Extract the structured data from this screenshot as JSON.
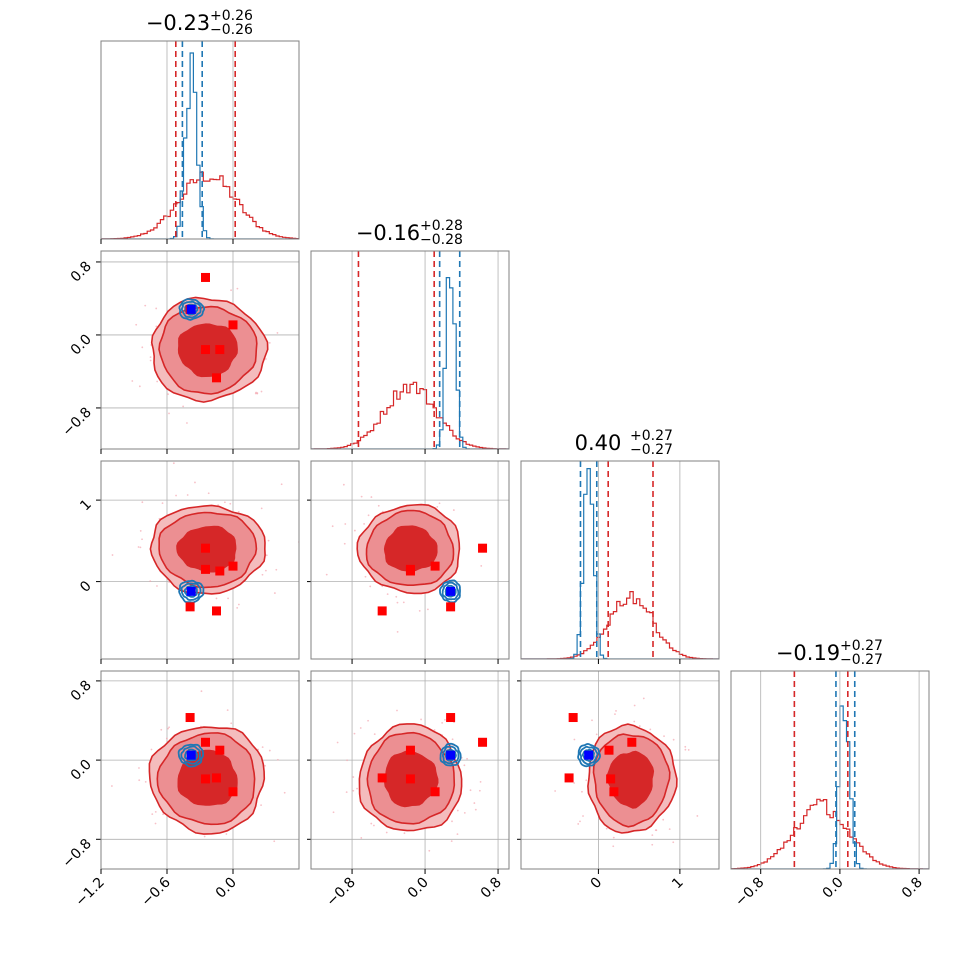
{
  "chart_data": {
    "type": "corner",
    "n_params": 4,
    "series": [
      {
        "name": "",
        "color": "#d62728",
        "style": "filled-contours",
        "centers": [
          -0.23,
          -0.16,
          0.4,
          -0.19
        ],
        "sigmas": [
          0.26,
          0.28,
          0.27,
          0.27
        ],
        "quantile_lines": [
          [
            -0.52,
            0.02
          ],
          [
            -0.73,
            0.1
          ],
          [
            0.12,
            0.67
          ],
          [
            -0.46,
            0.08
          ]
        ]
      },
      {
        "name": "",
        "color": "#1f77b4",
        "style": "line-contours",
        "centers": [
          -0.38,
          0.28,
          -0.12,
          0.05
        ],
        "sigmas": [
          0.05,
          0.05,
          0.06,
          0.05
        ],
        "quantile_lines": [
          [
            -0.46,
            -0.28
          ],
          [
            0.16,
            0.38
          ],
          [
            -0.22,
            -0.02
          ],
          [
            -0.04,
            0.15
          ]
        ]
      }
    ],
    "titles": [
      {
        "main": "−0.23",
        "sup": "+0.26",
        "sub": "−0.26"
      },
      {
        "main": "−0.16",
        "sup": "+0.28",
        "sub": "−0.28"
      },
      {
        "main": "0.40",
        "sup": "+0.27",
        "sub": "−0.27"
      },
      {
        "main": "−0.19",
        "sup": "+0.27",
        "sub": "−0.27"
      }
    ],
    "ranges": [
      [
        -1.2,
        0.6
      ],
      [
        -1.25,
        0.92
      ],
      [
        -0.95,
        1.48
      ],
      [
        -1.1,
        0.9
      ]
    ],
    "ticks": [
      [
        {
          "v": -1.2,
          "label": "−1.2"
        },
        {
          "v": -0.6,
          "label": "−0.6"
        },
        {
          "v": 0.0,
          "label": "0.0"
        }
      ],
      [
        {
          "v": -0.8,
          "label": "−0.8"
        },
        {
          "v": 0.0,
          "label": "0.0"
        },
        {
          "v": 0.8,
          "label": "0.8"
        }
      ],
      [
        {
          "v": 0,
          "label": "0"
        },
        {
          "v": 1,
          "label": "1"
        }
      ],
      [
        {
          "v": -0.8,
          "label": "−0.8"
        },
        {
          "v": 0.0,
          "label": "0.0"
        },
        {
          "v": 0.8,
          "label": "0.8"
        }
      ]
    ],
    "grid": true,
    "markers": {
      "red": [
        [
          -0.39,
          0.28,
          -0.31,
          0.43
        ],
        [
          -0.25,
          0.63,
          0.41,
          0.18
        ],
        [
          0.0,
          0.11,
          0.19,
          -0.32
        ],
        [
          -0.15,
          -0.47,
          -0.36,
          -0.18
        ],
        [
          -0.12,
          -0.16,
          0.13,
          0.1
        ],
        [
          -0.25,
          -0.16,
          0.15,
          -0.19
        ]
      ],
      "blue": [
        -0.38,
        0.28,
        -0.12,
        0.05
      ]
    }
  }
}
